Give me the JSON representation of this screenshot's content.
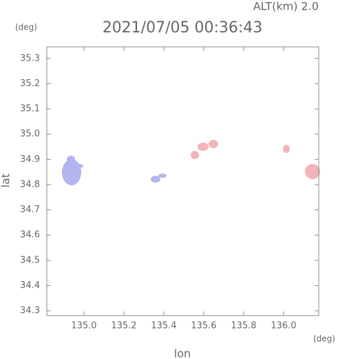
{
  "chart_data": {
    "type": "map",
    "header": "ALT(km) 2.0",
    "title": "2021/07/05 00:36:43",
    "y_unit": "(deg)",
    "x_unit": "(deg)",
    "xlabel": "lon",
    "ylabel": "lat",
    "xlim": [
      134.814,
      136.176
    ],
    "ylim": [
      34.281,
      35.346
    ],
    "xticks": [
      {
        "value": 135.0,
        "label": "135.0"
      },
      135.2,
      135.4,
      135.6,
      135.8,
      {
        "value": 136.0,
        "label": "136.0"
      }
    ],
    "yticks": [
      34.3,
      34.4,
      34.5,
      34.6,
      34.7,
      34.8,
      34.9,
      {
        "value": 35.0,
        "label": "35.0"
      },
      35.1,
      35.2,
      35.3
    ]
  }
}
